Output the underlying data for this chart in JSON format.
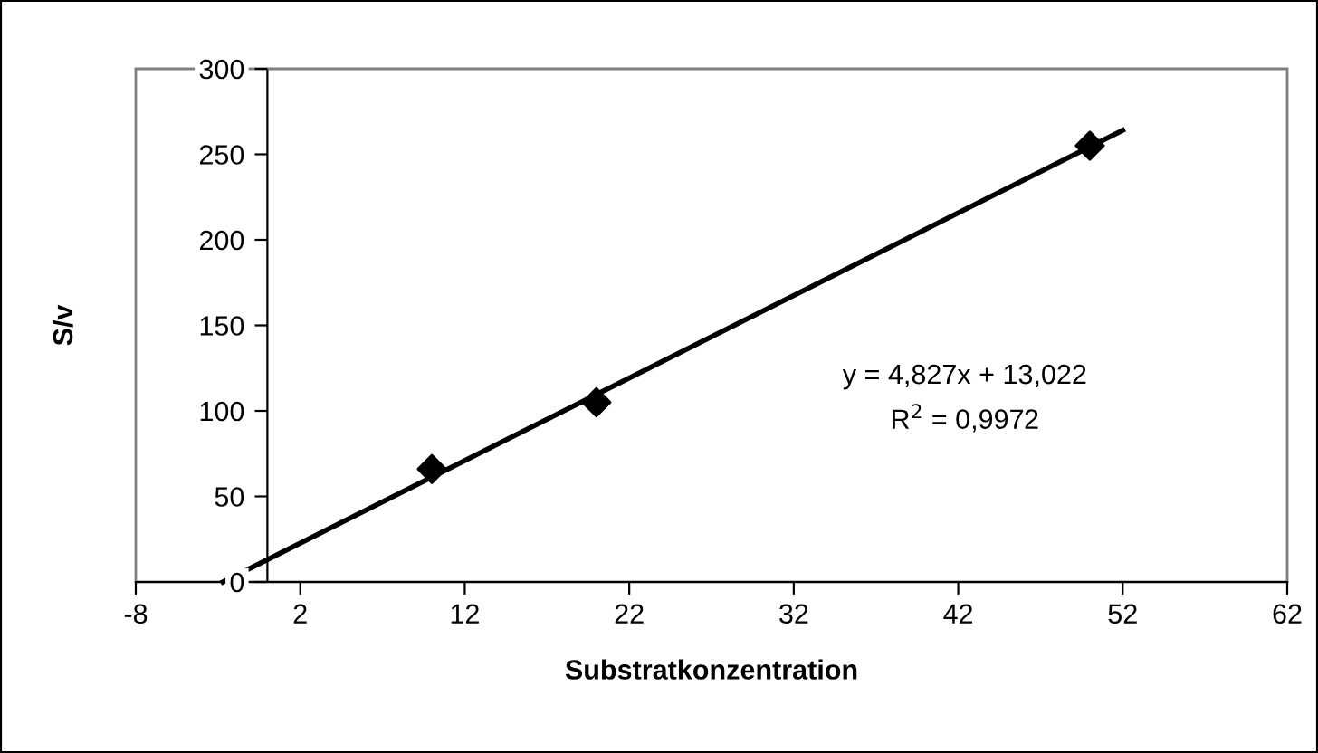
{
  "chart_data": {
    "type": "scatter",
    "xlabel": "Substratkonzentration",
    "ylabel": "S/v",
    "series": [
      {
        "color": "#000000",
        "marker": "diamond",
        "x": [
          10,
          20,
          50
        ],
        "values": [
          66,
          105,
          255
        ]
      },
      {
        "type": "line",
        "color": "#000000",
        "marker": "none",
        "line_style": "solid",
        "x": [
          -2.7,
          52
        ],
        "values": [
          0,
          264
        ]
      }
    ],
    "annotations": [
      "y = 4,827x + 13,022",
      "R$^{2}$ = 0,9972"
    ],
    "xlim": [
      -8,
      62
    ],
    "xticks": [
      -8,
      2,
      12,
      22,
      32,
      42,
      52,
      62
    ],
    "ylim": [
      0,
      300
    ],
    "yticks": [
      0,
      50,
      100,
      150,
      200,
      250,
      300
    ],
    "grid": false,
    "legend": false
  }
}
